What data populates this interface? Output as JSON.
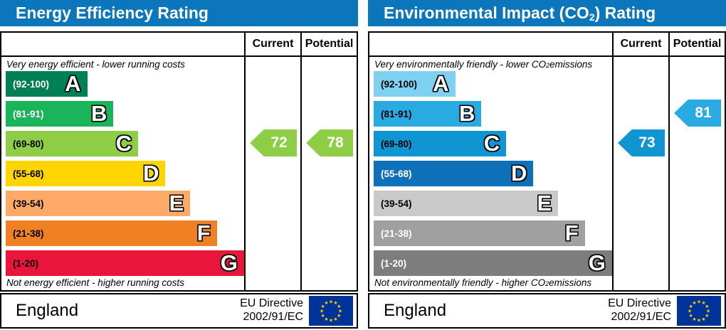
{
  "panels": [
    {
      "title": {
        "pre": "Energy Efficiency Rating",
        "sub": "",
        "post": ""
      },
      "header_color": "#0b76ba",
      "columns": {
        "current": "Current",
        "potential": "Potential"
      },
      "top_caption": {
        "pre": "Very energy efficient - lower running costs",
        "sub": "",
        "post": ""
      },
      "bottom_caption": {
        "pre": "Not energy efficient - higher running costs",
        "sub": "",
        "post": ""
      },
      "bands": [
        {
          "range": "(92-100)",
          "letter": "A",
          "color": "#008054",
          "width": "33.6%",
          "label_color": "#ffffff"
        },
        {
          "range": "(81-91)",
          "letter": "B",
          "color": "#19b459",
          "width": "44.4%",
          "label_color": "#ffffff"
        },
        {
          "range": "(69-80)",
          "letter": "C",
          "color": "#8dce46",
          "width": "54.6%",
          "label_color": "#000000"
        },
        {
          "range": "(55-68)",
          "letter": "D",
          "color": "#ffd500",
          "width": "65.8%",
          "label_color": "#000000"
        },
        {
          "range": "(39-54)",
          "letter": "E",
          "color": "#fcaa65",
          "width": "76.0%",
          "label_color": "#000000"
        },
        {
          "range": "(21-38)",
          "letter": "F",
          "color": "#ef8023",
          "width": "87.0%",
          "label_color": "#000000"
        },
        {
          "range": "(1-20)",
          "letter": "G",
          "color": "#e9153b",
          "width": "98.2%",
          "label_color": "#000000"
        }
      ],
      "current": {
        "label": "72",
        "band_index": 2,
        "color": "#8dce46"
      },
      "potential": {
        "label": "78",
        "band_index": 2,
        "color": "#8dce46"
      },
      "footer": {
        "region": "England",
        "directive_line1": "EU Directive",
        "directive_line2": "2002/91/EC"
      },
      "eu_flag": {
        "background": "#003399",
        "star_color": "#ffcc00"
      }
    },
    {
      "title": {
        "pre": "Environmental Impact (CO",
        "sub": "2",
        "post": ") Rating"
      },
      "header_color": "#0b76ba",
      "columns": {
        "current": "Current",
        "potential": "Potential"
      },
      "top_caption": {
        "pre": "Very environmentally friendly - lower CO",
        "sub": "2",
        "post": " emissions"
      },
      "bottom_caption": {
        "pre": "Not environmentally friendly - higher CO",
        "sub": "2",
        "post": " emissions"
      },
      "bands": [
        {
          "range": "(92-100)",
          "letter": "A",
          "color": "#7fd1f2",
          "width": "33.6%",
          "label_color": "#000000"
        },
        {
          "range": "(81-91)",
          "letter": "B",
          "color": "#29abe2",
          "width": "44.4%",
          "label_color": "#000000"
        },
        {
          "range": "(69-80)",
          "letter": "C",
          "color": "#1095d3",
          "width": "54.6%",
          "label_color": "#000000"
        },
        {
          "range": "(55-68)",
          "letter": "D",
          "color": "#0d70b8",
          "width": "65.8%",
          "label_color": "#ffffff"
        },
        {
          "range": "(39-54)",
          "letter": "E",
          "color": "#c9c9c9",
          "width": "76.0%",
          "label_color": "#000000"
        },
        {
          "range": "(21-38)",
          "letter": "F",
          "color": "#a0a0a0",
          "width": "87.0%",
          "label_color": "#ffffff"
        },
        {
          "range": "(1-20)",
          "letter": "G",
          "color": "#7d7d7d",
          "width": "98.2%",
          "label_color": "#ffffff"
        }
      ],
      "current": {
        "label": "73",
        "band_index": 2,
        "color": "#1095d3"
      },
      "potential": {
        "label": "81",
        "band_index": 1,
        "color": "#29abe2"
      },
      "footer": {
        "region": "England",
        "directive_line1": "EU Directive",
        "directive_line2": "2002/91/EC"
      },
      "eu_flag": {
        "background": "#003399",
        "star_color": "#ffcc00"
      }
    }
  ],
  "chart_data": [
    {
      "type": "bar",
      "title": "Energy Efficiency Rating",
      "categories": [
        "A",
        "B",
        "C",
        "D",
        "E",
        "F",
        "G"
      ],
      "band_ranges": [
        "92-100",
        "81-91",
        "69-80",
        "55-68",
        "39-54",
        "21-38",
        "1-20"
      ],
      "relative_bar_widths_pct": [
        33.6,
        44.4,
        54.6,
        65.8,
        76.0,
        87.0,
        98.2
      ],
      "series": [
        {
          "name": "Current",
          "value": 72,
          "band": "C"
        },
        {
          "name": "Potential",
          "value": 78,
          "band": "C"
        }
      ],
      "top_annotation": "Very energy efficient - lower running costs",
      "bottom_annotation": "Not energy efficient - higher running costs",
      "scale": [
        1,
        100
      ]
    },
    {
      "type": "bar",
      "title": "Environmental Impact (CO2) Rating",
      "categories": [
        "A",
        "B",
        "C",
        "D",
        "E",
        "F",
        "G"
      ],
      "band_ranges": [
        "92-100",
        "81-91",
        "69-80",
        "55-68",
        "39-54",
        "21-38",
        "1-20"
      ],
      "relative_bar_widths_pct": [
        33.6,
        44.4,
        54.6,
        65.8,
        76.0,
        87.0,
        98.2
      ],
      "series": [
        {
          "name": "Current",
          "value": 73,
          "band": "C"
        },
        {
          "name": "Potential",
          "value": 81,
          "band": "B"
        }
      ],
      "top_annotation": "Very environmentally friendly - lower CO2 emissions",
      "bottom_annotation": "Not environmentally friendly - higher CO2 emissions",
      "scale": [
        1,
        100
      ]
    }
  ]
}
